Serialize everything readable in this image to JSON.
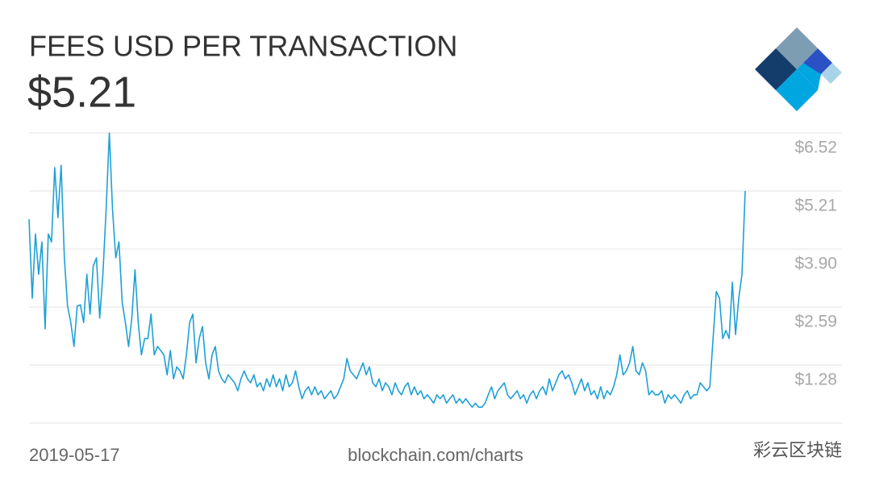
{
  "chart_data": {
    "type": "line",
    "title": "FEES USD PER TRANSACTION",
    "headline": "$5.21",
    "start_label": "2019-05-17",
    "source": "blockchain.com/charts",
    "watermark": "彩云区块链",
    "color": "#1ea0d6",
    "grid": true,
    "ylim": [
      -0.03,
      6.52
    ],
    "yticks": [
      {
        "value": 1.28,
        "label": "$1.28"
      },
      {
        "value": 2.59,
        "label": "$2.59"
      },
      {
        "value": 3.9,
        "label": "$3.90"
      },
      {
        "value": 5.21,
        "label": "$5.21"
      },
      {
        "value": 6.52,
        "label": "$6.52"
      }
    ],
    "values": [
      4.57,
      2.79,
      4.24,
      3.33,
      4.06,
      2.1,
      4.24,
      4.06,
      5.74,
      4.61,
      5.79,
      3.7,
      2.61,
      2.24,
      1.7,
      2.61,
      2.64,
      2.24,
      3.33,
      2.43,
      3.52,
      3.7,
      2.34,
      3.33,
      4.79,
      6.52,
      4.79,
      3.7,
      4.06,
      2.7,
      2.24,
      1.7,
      2.34,
      3.43,
      2.24,
      1.51,
      1.88,
      1.88,
      2.43,
      1.51,
      1.7,
      1.61,
      1.51,
      1.06,
      1.61,
      0.97,
      1.24,
      1.15,
      0.97,
      1.51,
      2.24,
      2.43,
      1.33,
      1.88,
      2.15,
      1.33,
      0.97,
      1.51,
      1.7,
      1.15,
      0.97,
      0.88,
      1.06,
      0.97,
      0.88,
      0.7,
      0.97,
      1.15,
      0.97,
      0.88,
      1.06,
      0.79,
      0.88,
      0.7,
      0.97,
      0.79,
      1.06,
      0.79,
      0.97,
      0.7,
      1.06,
      0.79,
      0.88,
      1.15,
      0.79,
      0.52,
      0.7,
      0.79,
      0.61,
      0.79,
      0.61,
      0.7,
      0.52,
      0.61,
      0.7,
      0.52,
      0.61,
      0.79,
      0.97,
      1.43,
      1.15,
      1.06,
      0.97,
      1.15,
      1.33,
      1.06,
      1.24,
      0.88,
      0.79,
      0.97,
      0.7,
      0.88,
      0.79,
      0.61,
      0.88,
      0.7,
      0.61,
      0.79,
      0.88,
      0.61,
      0.79,
      0.61,
      0.7,
      0.52,
      0.61,
      0.52,
      0.42,
      0.61,
      0.52,
      0.61,
      0.42,
      0.52,
      0.61,
      0.42,
      0.52,
      0.42,
      0.52,
      0.42,
      0.33,
      0.42,
      0.33,
      0.33,
      0.42,
      0.61,
      0.79,
      0.52,
      0.7,
      0.79,
      0.88,
      0.61,
      0.52,
      0.61,
      0.7,
      0.52,
      0.61,
      0.42,
      0.61,
      0.7,
      0.52,
      0.7,
      0.79,
      0.61,
      0.97,
      0.7,
      0.88,
      1.06,
      1.15,
      0.97,
      1.06,
      0.88,
      0.61,
      0.79,
      0.97,
      0.7,
      0.88,
      0.61,
      0.7,
      0.52,
      0.79,
      0.52,
      0.7,
      0.61,
      0.79,
      1.06,
      1.51,
      1.06,
      1.15,
      1.33,
      1.7,
      1.15,
      1.06,
      1.33,
      1.15,
      0.61,
      0.7,
      0.61,
      0.61,
      0.7,
      0.42,
      0.61,
      0.52,
      0.61,
      0.52,
      0.42,
      0.61,
      0.7,
      0.52,
      0.61,
      0.61,
      0.88,
      0.79,
      0.7,
      0.79,
      1.88,
      2.94,
      2.79,
      1.88,
      2.06,
      1.88,
      3.15,
      1.97,
      2.79,
      3.33,
      5.21
    ]
  }
}
